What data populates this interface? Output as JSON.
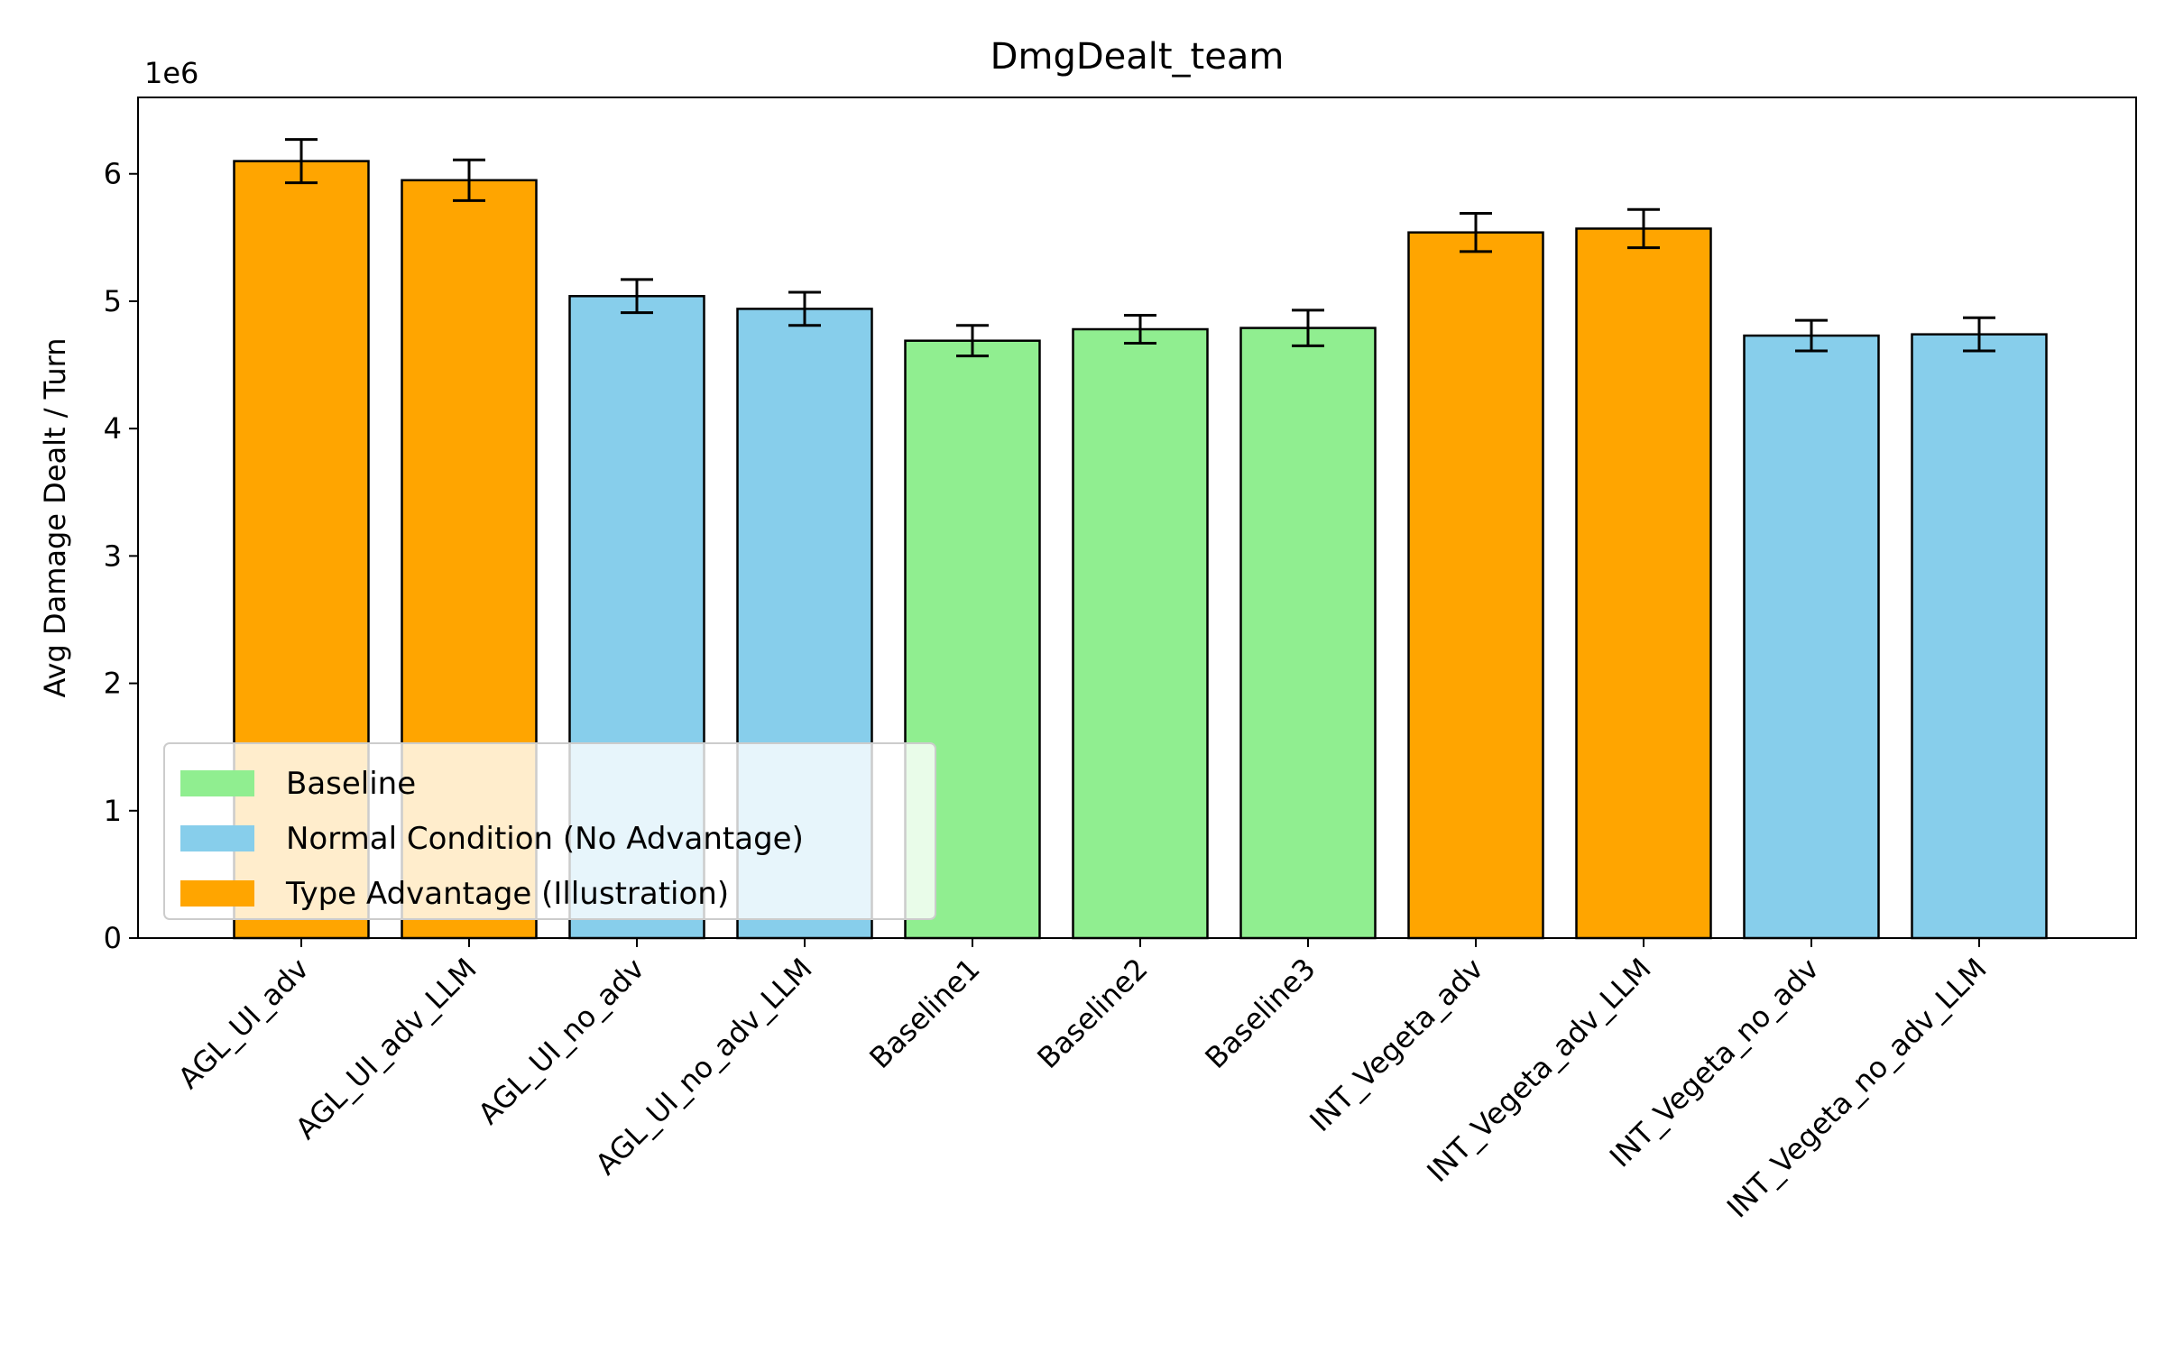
{
  "chart_data": {
    "type": "bar",
    "title": "DmgDealt_team",
    "xlabel": "",
    "ylabel": "Avg Damage Dealt / Turn",
    "y_offset_text": "1e6",
    "y_multiplier": 1000000,
    "ylim": [
      0,
      6.6
    ],
    "y_ticks": [
      0,
      1,
      2,
      3,
      4,
      5,
      6
    ],
    "grid": false,
    "legend_position": "lower-left",
    "categories": [
      "AGL_UI_adv",
      "AGL_UI_adv_LLM",
      "AGL_UI_no_adv",
      "AGL_UI_no_adv_LLM",
      "Baseline1",
      "Baseline2",
      "Baseline3",
      "INT_Vegeta_adv",
      "INT_Vegeta_adv_LLM",
      "INT_Vegeta_no_adv",
      "INT_Vegeta_no_adv_LLM"
    ],
    "values": [
      6.1,
      5.95,
      5.04,
      4.94,
      4.69,
      4.78,
      4.79,
      5.54,
      5.57,
      4.73,
      4.74
    ],
    "errors": [
      0.17,
      0.16,
      0.13,
      0.13,
      0.12,
      0.11,
      0.14,
      0.15,
      0.15,
      0.12,
      0.13
    ],
    "groups": [
      "Type Advantage (Illustration)",
      "Type Advantage (Illustration)",
      "Normal Condition (No Advantage)",
      "Normal Condition (No Advantage)",
      "Baseline",
      "Baseline",
      "Baseline",
      "Type Advantage (Illustration)",
      "Type Advantage (Illustration)",
      "Normal Condition (No Advantage)",
      "Normal Condition (No Advantage)"
    ],
    "legend": [
      {
        "label": "Baseline",
        "color": "#90EE90"
      },
      {
        "label": "Normal Condition (No Advantage)",
        "color": "#87CEEB"
      },
      {
        "label": "Type Advantage (Illustration)",
        "color": "#FFA500"
      }
    ]
  }
}
